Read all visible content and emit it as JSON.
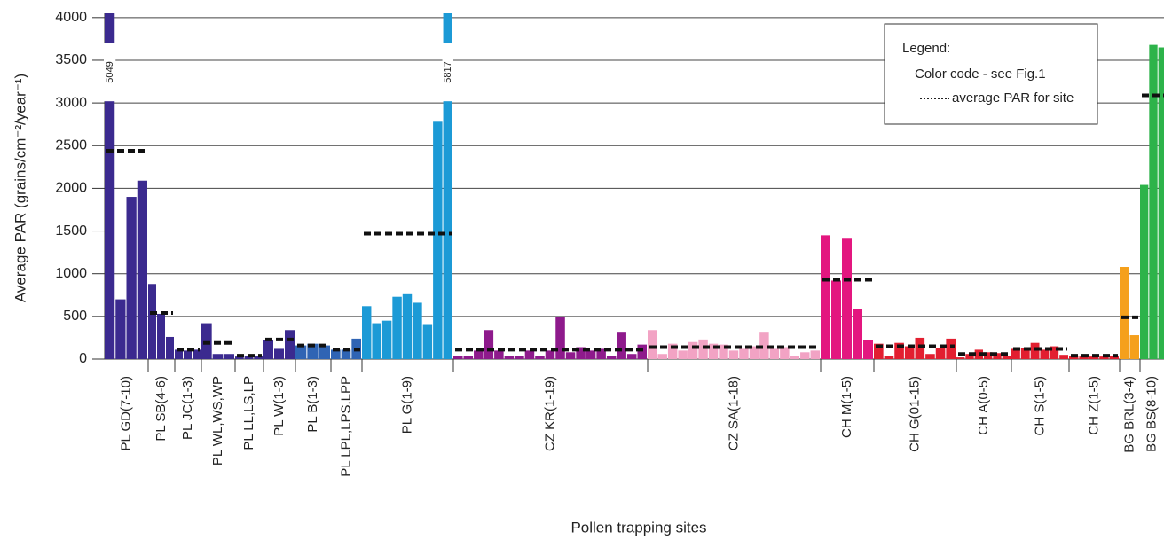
{
  "chart_data": {
    "type": "bar",
    "x_label": "Pollen trapping sites",
    "y_label": "Average PAR (grains/cm⁻²/year⁻¹)",
    "ylim": [
      0,
      4050
    ],
    "yticks": [
      0,
      500,
      1000,
      1500,
      2000,
      2500,
      3000,
      3500,
      4000
    ],
    "grid": true,
    "legend": {
      "title": "Legend:",
      "color_note": "Color code - see Fig.1",
      "average_note": "average PAR for site"
    },
    "groups": [
      {
        "name": "PL GD(7-10)",
        "color": "#3b2a8f",
        "values": [
          5049,
          700,
          1900,
          2090
        ],
        "value_labels": [
          "5049",
          null,
          null,
          null
        ],
        "average": 2440
      },
      {
        "name": "PL SB(4-6)",
        "color": "#3b2a8f",
        "values": [
          880,
          530,
          260
        ],
        "average": 540
      },
      {
        "name": "PL JC(1-3)",
        "color": "#3b2a8f",
        "values": [
          110,
          100,
          110
        ],
        "average": 110
      },
      {
        "name": "PL WL,WS,WP",
        "color": "#3b2a8f",
        "values": [
          420,
          60,
          60
        ],
        "average": 190
      },
      {
        "name": "PL LL,LS,LP",
        "color": "#3b2a8f",
        "values": [
          30,
          40,
          40
        ],
        "average": 40
      },
      {
        "name": "PL W(1-3)",
        "color": "#3b2a8f",
        "values": [
          220,
          120,
          340
        ],
        "average": 230
      },
      {
        "name": "PL B(1-3)",
        "color": "#2f64b4",
        "values": [
          160,
          180,
          160
        ],
        "average": 160
      },
      {
        "name": "PL LPL,LPS,LPP",
        "color": "#2f64b4",
        "values": [
          110,
          110,
          240
        ],
        "average": 110
      },
      {
        "name": "PL G(1-9)",
        "color": "#1c9ad6",
        "values": [
          620,
          420,
          450,
          730,
          760,
          660,
          410,
          2780,
          5817
        ],
        "value_labels": [
          null,
          null,
          null,
          null,
          null,
          null,
          null,
          null,
          "5817"
        ],
        "average": 1470
      },
      {
        "name": "CZ KR(1-19)",
        "color": "#8e1a8c",
        "values": [
          40,
          40,
          100,
          340,
          100,
          40,
          40,
          100,
          40,
          100,
          490,
          80,
          140,
          100,
          120,
          40,
          320,
          60,
          170
        ],
        "average": 110
      },
      {
        "name": "CZ SA(1-18)",
        "color": "#f2a3c4",
        "values": [
          340,
          60,
          180,
          100,
          200,
          230,
          180,
          170,
          100,
          120,
          150,
          320,
          120,
          140,
          40,
          80,
          100
        ],
        "average": 140
      },
      {
        "name": "CH M(1-5)",
        "color": "#e3167f",
        "values": [
          1450,
          920,
          1420,
          590,
          220
        ],
        "average": 930
      },
      {
        "name": "CH G(01-15)",
        "color": "#e21f30",
        "values": [
          180,
          40,
          190,
          150,
          250,
          60,
          130,
          240
        ],
        "average": 150
      },
      {
        "name": "CH A(0-5)",
        "color": "#e21f30",
        "values": [
          20,
          60,
          110,
          80,
          70,
          40
        ],
        "average": 60
      },
      {
        "name": "CH S(1-5)",
        "color": "#e21f30",
        "values": [
          120,
          130,
          190,
          110,
          150,
          50
        ],
        "average": 120
      },
      {
        "name": "CH Z(1-5)",
        "color": "#e21f30",
        "values": [
          40,
          30,
          30,
          30,
          40
        ],
        "average": 40
      },
      {
        "name": "BG BRL(3-4)",
        "color": "#f5a01c",
        "values": [
          1080,
          280
        ],
        "average": 490
      },
      {
        "name": "BG BS(8-10)",
        "color": "#2db34a",
        "values": [
          2040,
          3680,
          3650
        ],
        "average": 3090
      }
    ]
  }
}
